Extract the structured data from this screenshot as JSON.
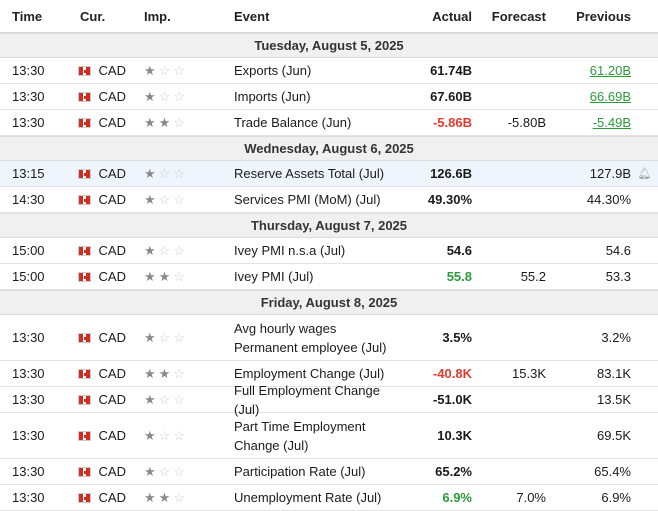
{
  "headers": {
    "time": "Time",
    "currency": "Cur.",
    "importance": "Imp.",
    "event": "Event",
    "actual": "Actual",
    "forecast": "Forecast",
    "previous": "Previous"
  },
  "groups": [
    {
      "date": "Tuesday, August 5, 2025",
      "rows": [
        {
          "time": "13:30",
          "cur": "CAD",
          "imp": 1,
          "event": "Exports (Jun)",
          "actual": "61.74B",
          "actual_color": "",
          "forecast": "",
          "previous": "61.20B",
          "previous_color": "green"
        },
        {
          "time": "13:30",
          "cur": "CAD",
          "imp": 1,
          "event": "Imports (Jun)",
          "actual": "67.60B",
          "actual_color": "",
          "forecast": "",
          "previous": "66.69B",
          "previous_color": "green"
        },
        {
          "time": "13:30",
          "cur": "CAD",
          "imp": 2,
          "event": "Trade Balance (Jun)",
          "actual": "-5.86B",
          "actual_color": "red",
          "forecast": "-5.80B",
          "previous": "-5.49B",
          "previous_color": "green"
        }
      ]
    },
    {
      "date": "Wednesday, August 6, 2025",
      "rows": [
        {
          "time": "13:15",
          "cur": "CAD",
          "imp": 1,
          "event": "Reserve Assets Total (Jul)",
          "actual": "126.6B",
          "actual_color": "",
          "forecast": "",
          "previous": "127.9B",
          "previous_color": "",
          "highlight": true
        },
        {
          "time": "14:30",
          "cur": "CAD",
          "imp": 1,
          "event": "Services PMI (MoM) (Jul)",
          "actual": "49.30%",
          "actual_color": "",
          "forecast": "",
          "previous": "44.30%",
          "previous_color": ""
        }
      ]
    },
    {
      "date": "Thursday, August 7, 2025",
      "rows": [
        {
          "time": "15:00",
          "cur": "CAD",
          "imp": 1,
          "event": "Ivey PMI n.s.a (Jul)",
          "actual": "54.6",
          "actual_color": "",
          "forecast": "",
          "previous": "54.6",
          "previous_color": ""
        },
        {
          "time": "15:00",
          "cur": "CAD",
          "imp": 2,
          "event": "Ivey PMI (Jul)",
          "actual": "55.8",
          "actual_color": "green",
          "forecast": "55.2",
          "previous": "53.3",
          "previous_color": ""
        }
      ]
    },
    {
      "date": "Friday, August 8, 2025",
      "rows": [
        {
          "time": "13:30",
          "cur": "CAD",
          "imp": 1,
          "event": "Avg hourly wages Permanent employee (Jul)",
          "actual": "3.5%",
          "actual_color": "",
          "forecast": "",
          "previous": "3.2%",
          "previous_color": "",
          "tall": true
        },
        {
          "time": "13:30",
          "cur": "CAD",
          "imp": 2,
          "event": "Employment Change (Jul)",
          "actual": "-40.8K",
          "actual_color": "red",
          "forecast": "15.3K",
          "previous": "83.1K",
          "previous_color": ""
        },
        {
          "time": "13:30",
          "cur": "CAD",
          "imp": 1,
          "event": "Full Employment Change (Jul)",
          "actual": "-51.0K",
          "actual_color": "",
          "forecast": "",
          "previous": "13.5K",
          "previous_color": ""
        },
        {
          "time": "13:30",
          "cur": "CAD",
          "imp": 1,
          "event": "Part Time Employment Change (Jul)",
          "actual": "10.3K",
          "actual_color": "",
          "forecast": "",
          "previous": "69.5K",
          "previous_color": "",
          "tall": true
        },
        {
          "time": "13:30",
          "cur": "CAD",
          "imp": 1,
          "event": "Participation Rate (Jul)",
          "actual": "65.2%",
          "actual_color": "",
          "forecast": "",
          "previous": "65.4%",
          "previous_color": ""
        },
        {
          "time": "13:30",
          "cur": "CAD",
          "imp": 2,
          "event": "Unemployment Rate (Jul)",
          "actual": "6.9%",
          "actual_color": "green",
          "forecast": "7.0%",
          "previous": "6.9%",
          "previous_color": ""
        }
      ]
    }
  ],
  "icons": {
    "flag": "canada-flag-icon",
    "star": "star-icon",
    "alert": "bell-plus-icon"
  },
  "colors": {
    "red": "#e23b2e",
    "green": "#2c9a3c",
    "highlight": "#eef5fc"
  }
}
